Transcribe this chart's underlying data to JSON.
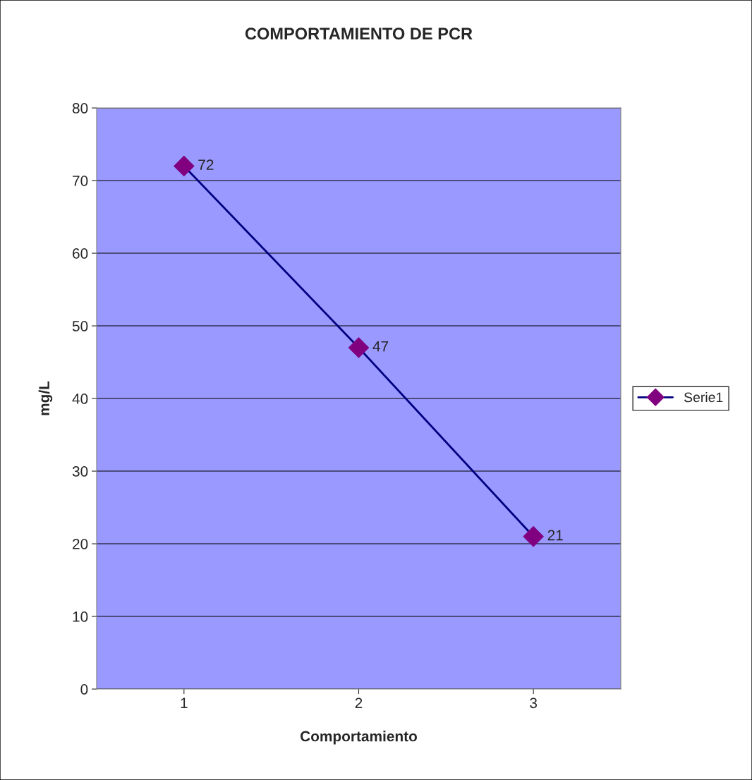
{
  "chart_data": {
    "type": "line",
    "title": "COMPORTAMIENTO DE PCR",
    "xlabel": "Comportamiento",
    "ylabel": "mg/L",
    "categories": [
      "1",
      "2",
      "3"
    ],
    "series": [
      {
        "name": "Serie1",
        "color": "#000080",
        "colors": [
          "#800080",
          "#800080",
          "#800080"
        ],
        "values": [
          72,
          47,
          21
        ]
      }
    ],
    "ylim": [
      0,
      80
    ],
    "yticks": [
      0,
      10,
      20,
      30,
      40,
      50,
      60,
      70,
      80
    ],
    "grid": "y",
    "legend": "right",
    "marker": "diamond",
    "line_style": "solid",
    "data_labels": true
  }
}
